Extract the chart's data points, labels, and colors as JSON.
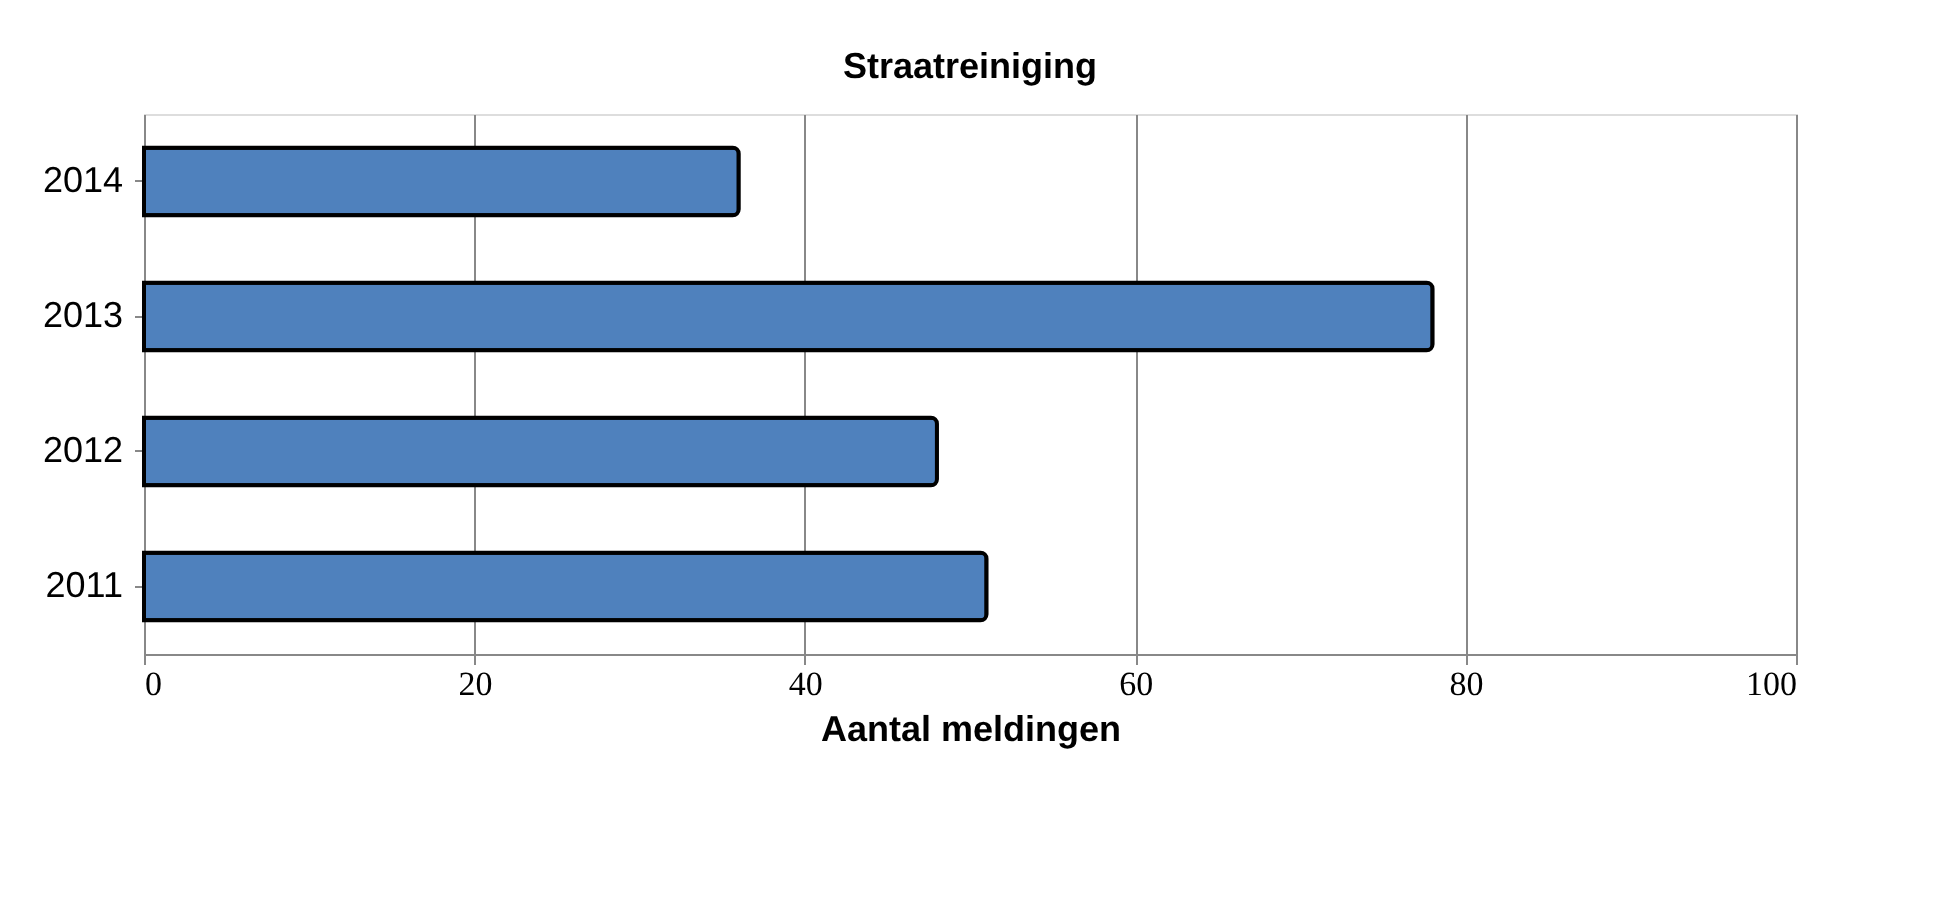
{
  "chart_data": {
    "type": "bar",
    "orientation": "horizontal",
    "title": "Straatreiniging",
    "xlabel": "Aantal meldingen",
    "categories": [
      "2014",
      "2013",
      "2012",
      "2011"
    ],
    "values": [
      36,
      78,
      48,
      51
    ],
    "color": "#4f81bd",
    "xlim": [
      0,
      100
    ],
    "xticks": [
      0,
      20,
      40,
      60,
      80,
      100
    ],
    "grid": "x"
  }
}
